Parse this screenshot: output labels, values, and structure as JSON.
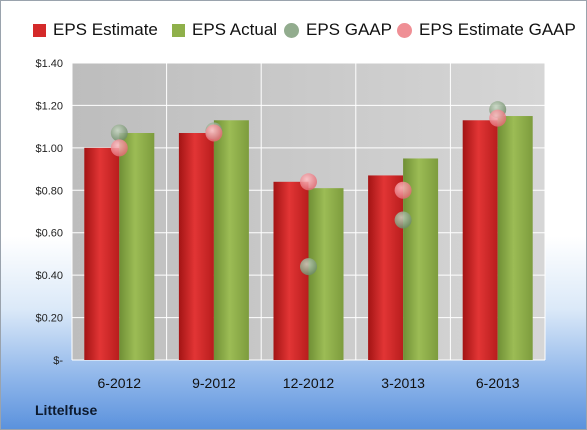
{
  "chart_data": {
    "type": "bar",
    "categories": [
      "6-2012",
      "9-2012",
      "12-2012",
      "3-2013",
      "6-2013"
    ],
    "series": [
      {
        "name": "EPS Estimate",
        "kind": "bar",
        "color": "#d42a2a",
        "values": [
          1.0,
          1.07,
          0.84,
          0.87,
          1.13
        ]
      },
      {
        "name": "EPS Actual",
        "kind": "bar",
        "color": "#8fb04a",
        "values": [
          1.07,
          1.13,
          0.81,
          0.95,
          1.15
        ]
      },
      {
        "name": "EPS GAAP",
        "kind": "dot",
        "color": "#7f9e7a",
        "values": [
          1.07,
          1.08,
          0.44,
          0.66,
          1.18
        ]
      },
      {
        "name": "EPS Estimate GAAP",
        "kind": "dot",
        "color": "#ec7b83",
        "values": [
          1.0,
          1.07,
          0.84,
          0.8,
          1.14
        ]
      }
    ],
    "yticks": [
      "$-",
      "$0.20",
      "$0.40",
      "$0.60",
      "$0.80",
      "$1.00",
      "$1.20",
      "$1.40"
    ],
    "ylim": [
      0,
      1.4
    ],
    "grid": true,
    "legend_position": "top",
    "title": "",
    "xlabel": "",
    "ylabel": ""
  },
  "brand": "Littelfuse"
}
